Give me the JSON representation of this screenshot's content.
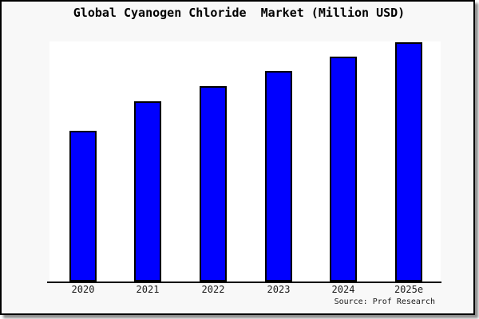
{
  "colors": {
    "bar_fill": "#0000ff",
    "bar_edge": "#000000",
    "figure_bg": "#f8f8f8",
    "plot_bg": "#ffffff",
    "axis_line": "#000000",
    "border": "#000000",
    "text": "#000000"
  },
  "chart_data": {
    "type": "bar",
    "title": "Global Cyanogen Chloride  Market (Million USD)",
    "categories": [
      "2020",
      "2021",
      "2022",
      "2023",
      "2024",
      "2025e"
    ],
    "values": [
      63,
      75.3,
      81.7,
      88,
      94,
      100
    ],
    "values_note": "no numeric y-axis shown; values estimated from bar heights, normalized so 2025e = 100",
    "xlabel": "",
    "ylabel": "",
    "ylim": [
      0,
      100
    ],
    "grid": false,
    "legend": false,
    "source": "Source: Prof Research"
  }
}
